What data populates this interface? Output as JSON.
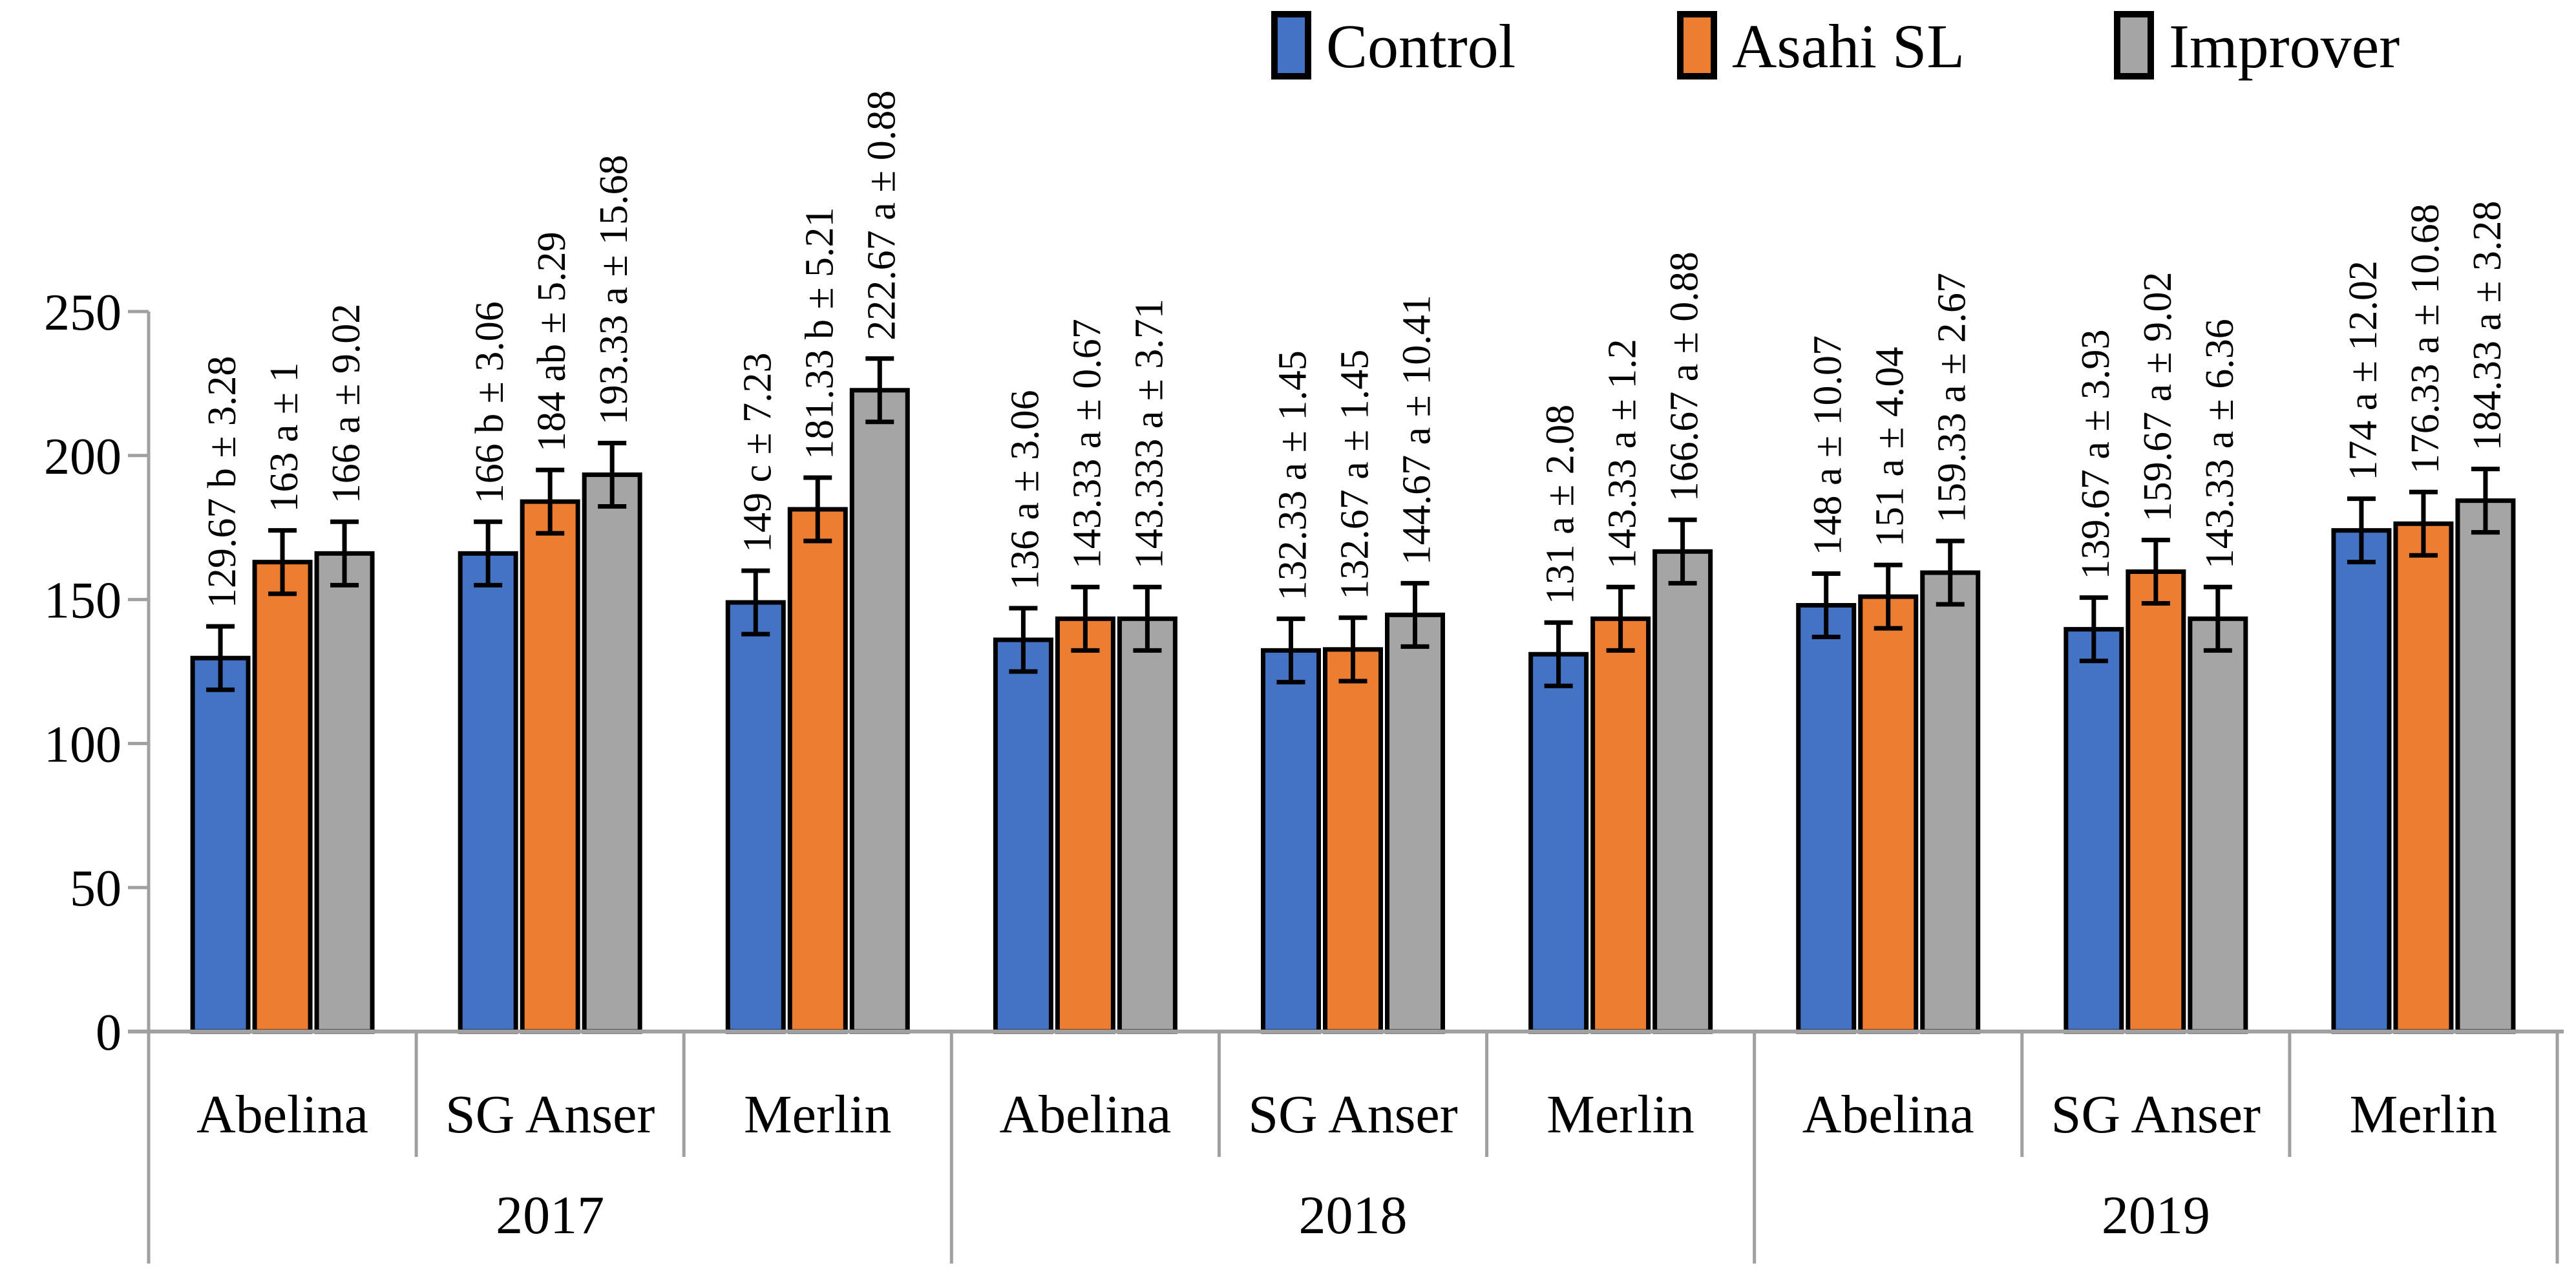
{
  "chart_data": {
    "type": "bar",
    "title": "",
    "xlabel": "",
    "ylabel": "",
    "ylim": [
      0,
      250
    ],
    "yticks": [
      0,
      50,
      100,
      150,
      200,
      250
    ],
    "grid": false,
    "legend_position": "top",
    "axis_color": "#A0A0A0",
    "bar_border_color": "#000000",
    "error_bar_color": "#000000",
    "error_bar_visual_halflength": 11,
    "years": [
      "2017",
      "2018",
      "2019"
    ],
    "cultivars_per_year": [
      "Abelina",
      "SG Anser",
      "Merlin"
    ],
    "categories": [
      {
        "cultivar": "Abelina",
        "year": "2017"
      },
      {
        "cultivar": "SG Anser",
        "year": "2017"
      },
      {
        "cultivar": "Merlin",
        "year": "2017"
      },
      {
        "cultivar": "Abelina",
        "year": "2018"
      },
      {
        "cultivar": "SG Anser",
        "year": "2018"
      },
      {
        "cultivar": "Merlin",
        "year": "2018"
      },
      {
        "cultivar": "Abelina",
        "year": "2019"
      },
      {
        "cultivar": "SG Anser",
        "year": "2019"
      },
      {
        "cultivar": "Merlin",
        "year": "2019"
      }
    ],
    "series": [
      {
        "name": "Control",
        "color": "#4472C4",
        "values": [
          129.67,
          166,
          149,
          136,
          132.33,
          131,
          148,
          139.67,
          174
        ],
        "labels": [
          "129.67 b ± 3.28",
          "166 b ± 3.06",
          "149 c ± 7.23",
          "136 a ± 3.06",
          "132.33 a ± 1.45",
          "131 a ± 2.08",
          "148 a ± 10.07",
          "139.67 a ± 3.93",
          "174 a ± 12.02"
        ]
      },
      {
        "name": "Asahi SL",
        "color": "#ED7D31",
        "values": [
          163,
          184,
          181.33,
          143.33,
          132.67,
          143.33,
          151,
          159.67,
          176.33
        ],
        "labels": [
          "163 a ± 1",
          "184 ab ± 5.29",
          "181.33 b ± 5.21",
          "143.33 a ± 0.67",
          "132.67 a ± 1.45",
          "143.33 a ± 1.2",
          "151 a ± 4.04",
          "159.67 a ± 9.02",
          "176.33 a ± 10.68"
        ]
      },
      {
        "name": "Improver",
        "color": "#A5A5A5",
        "values": [
          166,
          193.33,
          222.67,
          143.333,
          144.67,
          166.67,
          159.33,
          143.33,
          184.33
        ],
        "labels": [
          "166 a ± 9.02",
          "193.33 a ± 15.68",
          "222.67 a ± 0.88",
          "143.333 a ± 3.71",
          "144.67 a ± 10.41",
          "166.67 a ± 0.88",
          "159.33 a ± 2.67",
          "143.33 a ± 6.36",
          "184.33 a ± 3.28"
        ]
      }
    ]
  }
}
